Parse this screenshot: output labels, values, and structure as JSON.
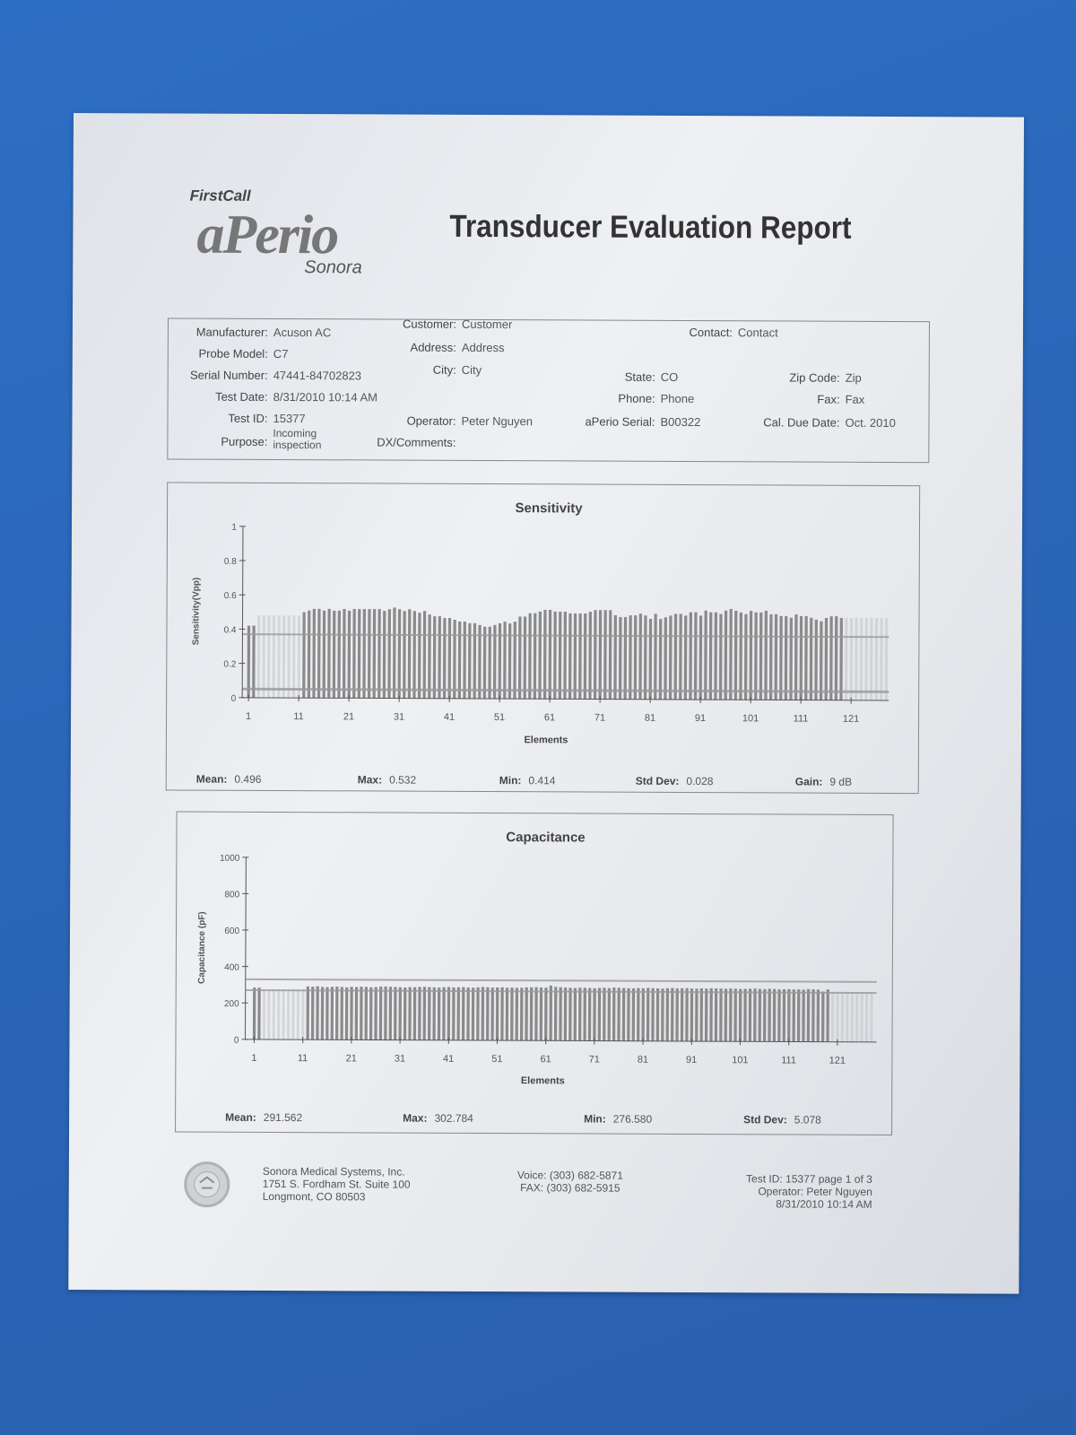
{
  "header": {
    "logo_firstcall": "FirstCall",
    "logo_aperio": "aPerio",
    "logo_sonora": "Sonora",
    "title": "Transducer Evaluation Report"
  },
  "info": [
    {
      "label": "Manufacturer:",
      "value": "Acuson AC"
    },
    {
      "label": "Probe Model:",
      "value": "C7"
    },
    {
      "label": "Serial Number:",
      "value": "47441-84702823"
    },
    {
      "label": "Test Date:",
      "value": "8/31/2010 10:14 AM"
    },
    {
      "label": "Test ID:",
      "value": "15377"
    },
    {
      "label": "Purpose:",
      "value": "Incoming inspection"
    },
    {
      "label": "Customer:",
      "value": "Customer"
    },
    {
      "label": "Address:",
      "value": "Address"
    },
    {
      "label": "City:",
      "value": "City"
    },
    {
      "label": "Operator:",
      "value": "Peter Nguyen"
    },
    {
      "label": "DX/Comments:",
      "value": ""
    },
    {
      "label": "Contact:",
      "value": "Contact"
    },
    {
      "label": "State:",
      "value": "CO"
    },
    {
      "label": "Phone:",
      "value": "Phone"
    },
    {
      "label": "aPerio Serial:",
      "value": "B00322"
    },
    {
      "label": "Zip Code:",
      "value": "Zip"
    },
    {
      "label": "Fax:",
      "value": "Fax"
    },
    {
      "label": "Cal. Due Date:",
      "value": "Oct. 2010"
    }
  ],
  "chart_data": [
    {
      "type": "bar",
      "title": "Sensitivity",
      "xlabel": "Elements",
      "ylabel": "Sensitivity(Vpp)",
      "ylim": [
        0,
        1
      ],
      "yticks": [
        "0",
        "0.2",
        "0.4",
        "0.6",
        "0.8",
        "1"
      ],
      "xticks": [
        "1",
        "11",
        "21",
        "31",
        "41",
        "51",
        "61",
        "71",
        "81",
        "91",
        "101",
        "111",
        "121"
      ],
      "limit_lines": [
        0.37,
        0.05
      ],
      "x_first": 1,
      "values": [
        0.42,
        0.42,
        null,
        null,
        null,
        null,
        null,
        null,
        null,
        null,
        null,
        0.5,
        0.51,
        0.52,
        0.52,
        0.51,
        0.52,
        0.51,
        0.51,
        0.52,
        0.51,
        0.52,
        0.52,
        0.52,
        0.52,
        0.52,
        0.52,
        0.51,
        0.52,
        0.53,
        0.52,
        0.51,
        0.52,
        0.51,
        0.5,
        0.51,
        0.49,
        0.48,
        0.48,
        0.47,
        0.47,
        0.46,
        0.45,
        0.45,
        0.44,
        0.44,
        0.43,
        0.42,
        0.42,
        0.43,
        0.44,
        0.45,
        0.44,
        0.45,
        0.48,
        0.48,
        0.5,
        0.5,
        0.51,
        0.52,
        0.52,
        0.51,
        0.51,
        0.51,
        0.5,
        0.5,
        0.5,
        0.5,
        0.51,
        0.52,
        0.52,
        0.52,
        0.52,
        0.49,
        0.48,
        0.48,
        0.49,
        0.49,
        0.5,
        0.49,
        0.47,
        0.5,
        0.47,
        0.48,
        0.49,
        0.5,
        0.5,
        0.49,
        0.51,
        0.51,
        0.49,
        0.52,
        0.51,
        0.51,
        0.5,
        0.52,
        0.53,
        0.52,
        0.51,
        0.5,
        0.52,
        0.51,
        0.51,
        0.52,
        0.5,
        0.5,
        0.49,
        0.49,
        0.48,
        0.5,
        0.49,
        0.49,
        0.48,
        0.47,
        0.46,
        0.48,
        0.49,
        0.49,
        0.48,
        null,
        null,
        null,
        null,
        null,
        null,
        null,
        null,
        null
      ],
      "stats": [
        {
          "label": "Mean:",
          "value": "0.496"
        },
        {
          "label": "Max:",
          "value": "0.532"
        },
        {
          "label": "Min:",
          "value": "0.414"
        },
        {
          "label": "Std Dev:",
          "value": "0.028"
        },
        {
          "label": "Gain:",
          "value": "9 dB"
        }
      ]
    },
    {
      "type": "bar",
      "title": "Capacitance",
      "xlabel": "Elements",
      "ylabel": "Capacitance (pF)",
      "ylim": [
        0,
        1000
      ],
      "yticks": [
        "0",
        "200",
        "400",
        "600",
        "800",
        "1000"
      ],
      "xticks": [
        "1",
        "11",
        "21",
        "31",
        "41",
        "51",
        "61",
        "71",
        "81",
        "91",
        "101",
        "111",
        "121"
      ],
      "limit_lines": [
        330,
        270
      ],
      "x_first": 1,
      "values": [
        285,
        284,
        null,
        null,
        null,
        null,
        null,
        null,
        null,
        null,
        null,
        292,
        291,
        293,
        290,
        289,
        291,
        292,
        290,
        288,
        291,
        290,
        292,
        291,
        289,
        290,
        293,
        294,
        292,
        291,
        290,
        289,
        291,
        290,
        292,
        293,
        291,
        290,
        289,
        291,
        292,
        290,
        291,
        292,
        290,
        289,
        291,
        293,
        292,
        290,
        291,
        292,
        290,
        291,
        289,
        290,
        292,
        293,
        294,
        292,
        291,
        302.8,
        296,
        294,
        292,
        291,
        290,
        292,
        291,
        290,
        289,
        291,
        292,
        290,
        293,
        292,
        291,
        290,
        289,
        291,
        290,
        292,
        291,
        290,
        289,
        291,
        292,
        290,
        291,
        292,
        290,
        289,
        291,
        290,
        292,
        291,
        290,
        289,
        291,
        290,
        288,
        289,
        290,
        291,
        289,
        288,
        290,
        289,
        287,
        288,
        289,
        287,
        288,
        286,
        289,
        288,
        287,
        276.6,
        288,
        null,
        null,
        null,
        null,
        null,
        null,
        null,
        null,
        null
      ],
      "stats": [
        {
          "label": "Mean:",
          "value": "291.562"
        },
        {
          "label": "Max:",
          "value": "302.784"
        },
        {
          "label": "Min:",
          "value": "276.580"
        },
        {
          "label": "Std Dev:",
          "value": "5.078"
        }
      ]
    }
  ],
  "footer": {
    "company": "Sonora Medical Systems, Inc.",
    "address1": "1751 S. Fordham St. Suite 100",
    "address2": "Longmont, CO 80503",
    "voice": "Voice: (303) 682-5871",
    "fax": "FAX: (303) 682-5915",
    "page": "Test ID: 15377 page 1 of 3",
    "operator": "Operator: Peter Nguyen",
    "date": "8/31/2010 10:14 AM"
  },
  "colors": {
    "background": "#2b66b8",
    "paper": "#e8eaee",
    "bar": "#8a8a8a",
    "faint_bar": "#c4c6ca"
  }
}
